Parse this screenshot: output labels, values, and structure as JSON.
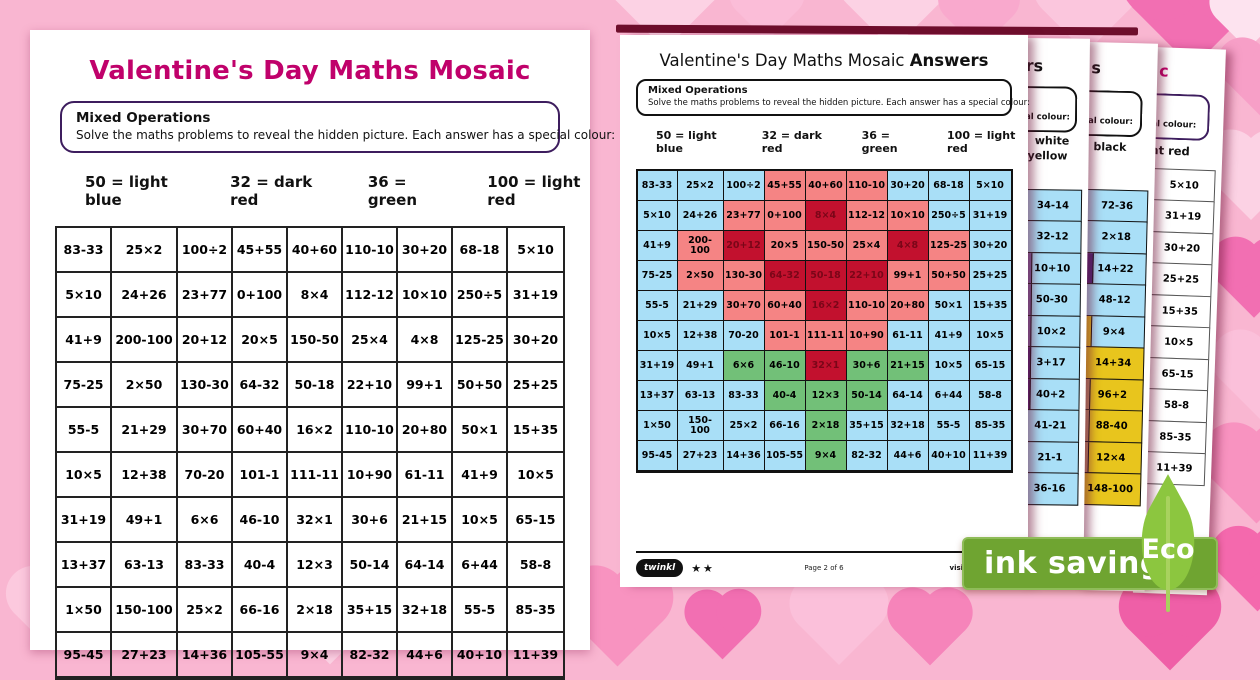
{
  "colors": {
    "background_pink": "#f9b6d1",
    "title_magenta": "#c0016b",
    "box_border_purple": "#3d1d5e",
    "light_blue": "#a9dff7",
    "light_red": "#f58484",
    "dark_red": "#c2112e",
    "green": "#72c078",
    "yellow": "#e8c51d",
    "tan": "#bf9268",
    "purple_light": "#7b68a8",
    "purple_dark": "#4a2579",
    "eco_banner_green": "#6fa431",
    "eco_leaf_green": "#8cc63f"
  },
  "page1": {
    "title": "Valentine's Day Maths Mosaic",
    "box_title": "Mixed Operations",
    "box_text": "Solve the maths problems to reveal the hidden picture. Each answer has a special colour:",
    "key": [
      "50 = light blue",
      "32 = dark red",
      "36 = green",
      "100 = light red"
    ],
    "grid": [
      [
        "83-33",
        "25×2",
        "100÷2",
        "45+55",
        "40+60",
        "110-10",
        "30+20",
        "68-18",
        "5×10"
      ],
      [
        "5×10",
        "24+26",
        "23+77",
        "0+100",
        "8×4",
        "112-12",
        "10×10",
        "250÷5",
        "31+19"
      ],
      [
        "41+9",
        "200-100",
        "20+12",
        "20×5",
        "150-50",
        "25×4",
        "4×8",
        "125-25",
        "30+20"
      ],
      [
        "75-25",
        "2×50",
        "130-30",
        "64-32",
        "50-18",
        "22+10",
        "99+1",
        "50+50",
        "25+25"
      ],
      [
        "55-5",
        "21+29",
        "30+70",
        "60+40",
        "16×2",
        "110-10",
        "20+80",
        "50×1",
        "15+35"
      ],
      [
        "10×5",
        "12+38",
        "70-20",
        "101-1",
        "111-11",
        "10+90",
        "61-11",
        "41+9",
        "10×5"
      ],
      [
        "31+19",
        "49+1",
        "6×6",
        "46-10",
        "32×1",
        "30+6",
        "21+15",
        "10×5",
        "65-15"
      ],
      [
        "13+37",
        "63-13",
        "83-33",
        "40-4",
        "12×3",
        "50-14",
        "64-14",
        "6+44",
        "58-8"
      ],
      [
        "1×50",
        "150-100",
        "25×2",
        "66-16",
        "2×18",
        "35+15",
        "32+18",
        "55-5",
        "85-35"
      ],
      [
        "95-45",
        "27+23",
        "14+36",
        "105-55",
        "9×4",
        "82-32",
        "44+6",
        "40+10",
        "11+39"
      ]
    ]
  },
  "page2": {
    "title": "Valentine's Day Maths Mosaic",
    "title_bold": "Answers",
    "box_title": "Mixed Operations",
    "box_text": "Solve the maths problems to reveal the hidden picture. Each answer has a special colour:",
    "key": [
      "50 = light blue",
      "32 = dark red",
      "36 = green",
      "100 = light red"
    ],
    "grid": [
      [
        [
          "83-33",
          "B"
        ],
        [
          "25×2",
          "B"
        ],
        [
          "100÷2",
          "B"
        ],
        [
          "45+55",
          "R"
        ],
        [
          "40+60",
          "R"
        ],
        [
          "110-10",
          "R"
        ],
        [
          "30+20",
          "B"
        ],
        [
          "68-18",
          "B"
        ],
        [
          "5×10",
          "B"
        ]
      ],
      [
        [
          "5×10",
          "B"
        ],
        [
          "24+26",
          "B"
        ],
        [
          "23+77",
          "R"
        ],
        [
          "0+100",
          "R"
        ],
        [
          "8×4",
          "D"
        ],
        [
          "112-12",
          "R"
        ],
        [
          "10×10",
          "R"
        ],
        [
          "250÷5",
          "B"
        ],
        [
          "31+19",
          "B"
        ]
      ],
      [
        [
          "41+9",
          "B"
        ],
        [
          "200-100",
          "R"
        ],
        [
          "20+12",
          "D"
        ],
        [
          "20×5",
          "R"
        ],
        [
          "150-50",
          "R"
        ],
        [
          "25×4",
          "R"
        ],
        [
          "4×8",
          "D"
        ],
        [
          "125-25",
          "R"
        ],
        [
          "30+20",
          "B"
        ]
      ],
      [
        [
          "75-25",
          "B"
        ],
        [
          "2×50",
          "R"
        ],
        [
          "130-30",
          "R"
        ],
        [
          "64-32",
          "D"
        ],
        [
          "50-18",
          "D"
        ],
        [
          "22+10",
          "D"
        ],
        [
          "99+1",
          "R"
        ],
        [
          "50+50",
          "R"
        ],
        [
          "25+25",
          "B"
        ]
      ],
      [
        [
          "55-5",
          "B"
        ],
        [
          "21+29",
          "B"
        ],
        [
          "30+70",
          "R"
        ],
        [
          "60+40",
          "R"
        ],
        [
          "16×2",
          "D"
        ],
        [
          "110-10",
          "R"
        ],
        [
          "20+80",
          "R"
        ],
        [
          "50×1",
          "B"
        ],
        [
          "15+35",
          "B"
        ]
      ],
      [
        [
          "10×5",
          "B"
        ],
        [
          "12+38",
          "B"
        ],
        [
          "70-20",
          "B"
        ],
        [
          "101-1",
          "R"
        ],
        [
          "111-11",
          "R"
        ],
        [
          "10+90",
          "R"
        ],
        [
          "61-11",
          "B"
        ],
        [
          "41+9",
          "B"
        ],
        [
          "10×5",
          "B"
        ]
      ],
      [
        [
          "31+19",
          "B"
        ],
        [
          "49+1",
          "B"
        ],
        [
          "6×6",
          "G"
        ],
        [
          "46-10",
          "G"
        ],
        [
          "32×1",
          "D"
        ],
        [
          "30+6",
          "G"
        ],
        [
          "21+15",
          "G"
        ],
        [
          "10×5",
          "B"
        ],
        [
          "65-15",
          "B"
        ]
      ],
      [
        [
          "13+37",
          "B"
        ],
        [
          "63-13",
          "B"
        ],
        [
          "83-33",
          "B"
        ],
        [
          "40-4",
          "G"
        ],
        [
          "12×3",
          "G"
        ],
        [
          "50-14",
          "G"
        ],
        [
          "64-14",
          "B"
        ],
        [
          "6+44",
          "B"
        ],
        [
          "58-8",
          "B"
        ]
      ],
      [
        [
          "1×50",
          "B"
        ],
        [
          "150-100",
          "B"
        ],
        [
          "25×2",
          "B"
        ],
        [
          "66-16",
          "B"
        ],
        [
          "2×18",
          "G"
        ],
        [
          "35+15",
          "B"
        ],
        [
          "32+18",
          "B"
        ],
        [
          "55-5",
          "B"
        ],
        [
          "85-35",
          "B"
        ]
      ],
      [
        [
          "95-45",
          "B"
        ],
        [
          "27+23",
          "B"
        ],
        [
          "14+36",
          "B"
        ],
        [
          "105-55",
          "B"
        ],
        [
          "9×4",
          "G"
        ],
        [
          "82-32",
          "B"
        ],
        [
          "44+6",
          "B"
        ],
        [
          "40+10",
          "B"
        ],
        [
          "11+39",
          "B"
        ]
      ]
    ],
    "footer": {
      "logo": "twinkl",
      "stars": "★★",
      "page_label": "Page 2 of 6",
      "visit_label": "visit twinkl.com"
    }
  },
  "page3": {
    "title_fragment": "rs",
    "box_fragment": "al colour:",
    "key_fragments": [
      "white",
      "yellow"
    ],
    "cells": [
      {
        "t": "34-14",
        "bg": "B"
      },
      {
        "t": "32-12",
        "bg": "B"
      },
      {
        "t": "10+10",
        "bg": "B",
        "sliver": "PL"
      },
      {
        "t": "50-30",
        "bg": "B",
        "sliver": "PL"
      },
      {
        "t": "10×2",
        "bg": "B",
        "sliver": "PL"
      },
      {
        "t": "3+17",
        "bg": "B",
        "sliver": "PD"
      },
      {
        "t": "40+2",
        "bg": "B",
        "sliver": "PD"
      },
      {
        "t": "41-21",
        "bg": "B"
      },
      {
        "t": "21-1",
        "bg": "B"
      },
      {
        "t": "36-16",
        "bg": "B"
      }
    ]
  },
  "page4": {
    "title_fragment": "s",
    "box_fragment": "al colour:",
    "key_fragments": [
      "black"
    ],
    "cells": [
      {
        "t": "72-36",
        "bg": "B"
      },
      {
        "t": "2×18",
        "bg": "B"
      },
      {
        "t": "14+22",
        "bg": "B",
        "sliver": "PD"
      },
      {
        "t": "48-12",
        "bg": "B"
      },
      {
        "t": "9×4",
        "bg": "B",
        "sliver": "Y"
      },
      {
        "t": "14+34",
        "bg": "Y"
      },
      {
        "t": "96+2",
        "bg": "Y",
        "sliver": "T"
      },
      {
        "t": "88-40",
        "bg": "Y",
        "sliver": "T"
      },
      {
        "t": "12×4",
        "bg": "Y",
        "sliver": "T"
      },
      {
        "t": "148-100",
        "bg": "Y"
      }
    ]
  },
  "page5": {
    "title_fragment": "c",
    "box_fragment": "al colour:",
    "key_fragments": [
      "ht red"
    ],
    "cells": [
      {
        "t": "5×10",
        "bg": "W"
      },
      {
        "t": "31+19",
        "bg": "W"
      },
      {
        "t": "30+20",
        "bg": "W"
      },
      {
        "t": "25+25",
        "bg": "W"
      },
      {
        "t": "15+35",
        "bg": "W"
      },
      {
        "t": "10×5",
        "bg": "W"
      },
      {
        "t": "65-15",
        "bg": "W"
      },
      {
        "t": "58-8",
        "bg": "W"
      },
      {
        "t": "85-35",
        "bg": "W"
      },
      {
        "t": "11+39",
        "bg": "W"
      }
    ]
  },
  "eco": {
    "banner_label": "ink saving",
    "leaf_label": "Eco"
  }
}
